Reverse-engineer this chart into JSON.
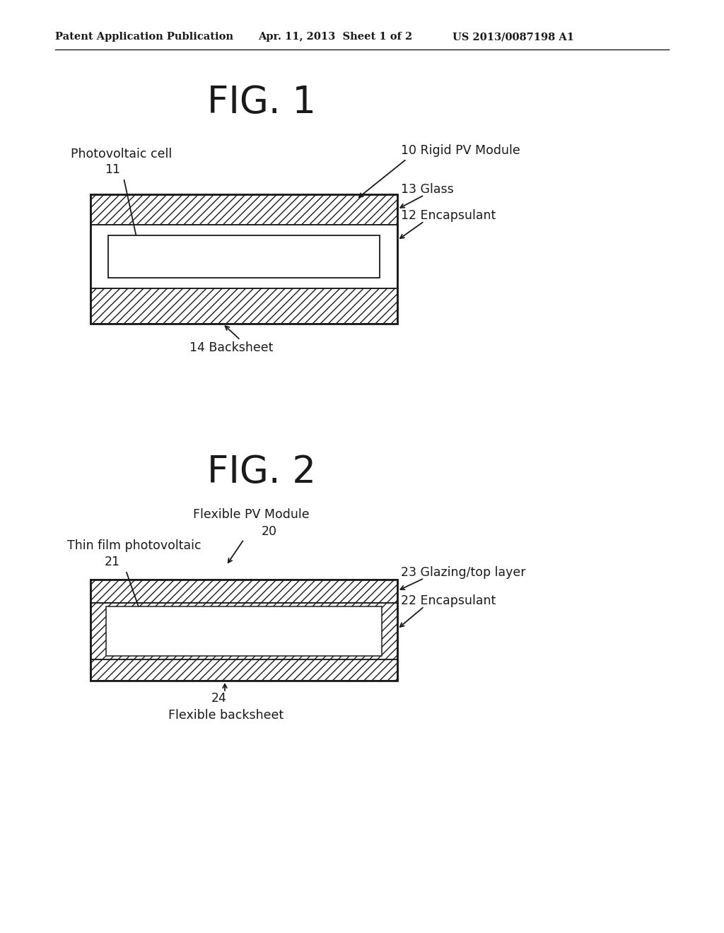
{
  "bg_color": "#ffffff",
  "header_left": "Patent Application Publication",
  "header_mid": "Apr. 11, 2013  Sheet 1 of 2",
  "header_right": "US 2013/0087198 A1",
  "fig1_title": "FIG. 1",
  "fig2_title": "FIG. 2",
  "fig1_labels": {
    "photovoltaic_cell": "Photovoltaic cell",
    "num11": "11",
    "label10": "10 Rigid PV Module",
    "label13": "13 Glass",
    "label12": "12 Encapsulant",
    "label14": "14 Backsheet"
  },
  "fig2_labels": {
    "flexible_pv": "Flexible PV Module",
    "num20": "20",
    "thin_film": "Thin film photovoltaic",
    "num21": "21",
    "label23": "23 Glazing/top layer",
    "label22": "22 Encapsulant",
    "num24": "24",
    "flexible_backsheet": "Flexible backsheet"
  },
  "text_color": "#1a1a1a",
  "line_color": "#1a1a1a"
}
